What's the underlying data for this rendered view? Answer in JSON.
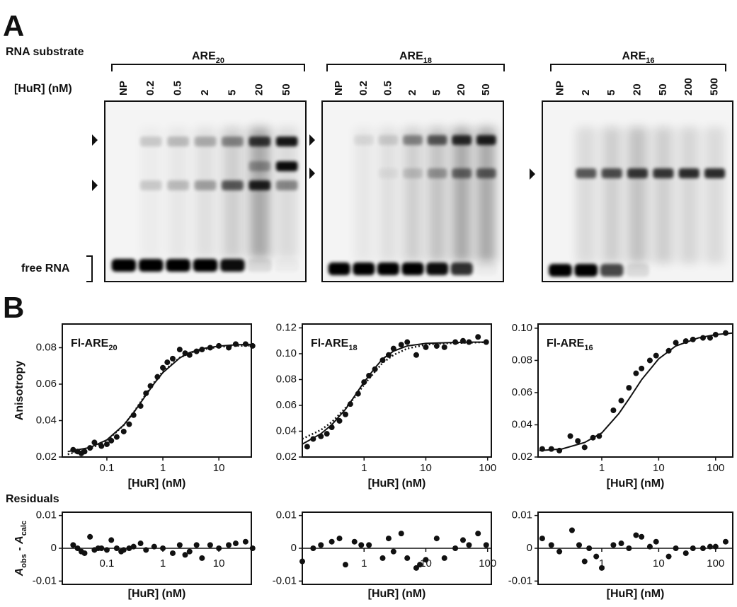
{
  "panel_a": {
    "label": "A",
    "substrate_label": "RNA substrate",
    "conc_label": "[HuR] (nM)",
    "free_label": "free RNA",
    "gels": [
      {
        "name": "ARE",
        "subscript": "20",
        "lanes": [
          "NP",
          "0.2",
          "0.5",
          "2",
          "5",
          "20",
          "50"
        ]
      },
      {
        "name": "ARE",
        "subscript": "18",
        "lanes": [
          "NP",
          "0.2",
          "0.5",
          "2",
          "5",
          "20",
          "50"
        ]
      },
      {
        "name": "ARE",
        "subscript": "16",
        "lanes": [
          "NP",
          "2",
          "5",
          "20",
          "50",
          "200",
          "500"
        ]
      }
    ]
  },
  "panel_b": {
    "label": "B",
    "residuals_label": "Residuals"
  },
  "chart_data": [
    {
      "type": "scatter",
      "title": "Fl-ARE",
      "title_subscript": "20",
      "xlabel": "[HuR] (nM)",
      "ylabel": "Anisotropy",
      "xscale": "log",
      "xlim": [
        0.016,
        38
      ],
      "xticks": [
        0.1,
        1,
        10
      ],
      "ylim": [
        0.02,
        0.093
      ],
      "yticks": [
        0.02,
        0.04,
        0.06,
        0.08
      ],
      "series": [
        {
          "mode": "markers",
          "color": "#111111",
          "x": [
            0.025,
            0.03,
            0.035,
            0.04,
            0.05,
            0.06,
            0.08,
            0.1,
            0.12,
            0.15,
            0.2,
            0.25,
            0.3,
            0.4,
            0.5,
            0.6,
            0.8,
            1,
            1.2,
            1.5,
            2,
            2.5,
            3,
            4,
            5,
            7,
            10,
            15,
            20,
            30,
            40
          ],
          "values": [
            0.024,
            0.023,
            0.022,
            0.023,
            0.025,
            0.028,
            0.026,
            0.027,
            0.029,
            0.031,
            0.034,
            0.038,
            0.043,
            0.048,
            0.055,
            0.059,
            0.064,
            0.069,
            0.072,
            0.074,
            0.079,
            0.077,
            0.076,
            0.078,
            0.079,
            0.08,
            0.081,
            0.08,
            0.082,
            0.082,
            0.081
          ]
        },
        {
          "mode": "line",
          "line_style": "solid",
          "color": "#111111",
          "x": [
            0.02,
            0.05,
            0.1,
            0.2,
            0.3,
            0.5,
            0.7,
            1,
            2,
            3,
            5,
            10,
            20,
            40
          ],
          "values": [
            0.023,
            0.0252,
            0.0294,
            0.0376,
            0.0443,
            0.054,
            0.0604,
            0.0663,
            0.0744,
            0.0773,
            0.0795,
            0.0809,
            0.0816,
            0.0818
          ]
        },
        {
          "mode": "line",
          "line_style": "dotted",
          "color": "#111111",
          "x": [
            0.02,
            0.05,
            0.1,
            0.2,
            0.3,
            0.5,
            0.7,
            1,
            2,
            3,
            5,
            10,
            20,
            40
          ],
          "values": [
            0.0215,
            0.0245,
            0.029,
            0.0375,
            0.0445,
            0.0545,
            0.061,
            0.067,
            0.0745,
            0.077,
            0.079,
            0.0805,
            0.081,
            0.0812
          ]
        }
      ]
    },
    {
      "type": "scatter",
      "title": "Fl-ARE",
      "title_subscript": "18",
      "xlabel": "[HuR] (nM)",
      "xscale": "log",
      "xlim": [
        0.1,
        115
      ],
      "xticks": [
        1,
        10,
        100
      ],
      "ylim": [
        0.02,
        0.123
      ],
      "yticks": [
        0.02,
        0.04,
        0.06,
        0.08,
        {
          "value": 0.1,
          "label": "0.10"
        },
        0.12
      ],
      "series": [
        {
          "mode": "markers",
          "color": "#111111",
          "x": [
            0.12,
            0.15,
            0.2,
            0.25,
            0.3,
            0.4,
            0.5,
            0.6,
            0.8,
            1,
            1.2,
            1.5,
            2,
            2.5,
            3,
            4,
            5,
            7,
            10,
            15,
            20,
            30,
            40,
            50,
            70,
            95
          ],
          "values": [
            0.028,
            0.034,
            0.036,
            0.038,
            0.043,
            0.048,
            0.053,
            0.061,
            0.069,
            0.078,
            0.083,
            0.088,
            0.095,
            0.099,
            0.104,
            0.107,
            0.109,
            0.099,
            0.105,
            0.106,
            0.105,
            0.109,
            0.11,
            0.109,
            0.113,
            0.109
          ]
        },
        {
          "mode": "line",
          "line_style": "solid",
          "color": "#111111",
          "x": [
            0.1,
            0.2,
            0.3,
            0.5,
            0.7,
            1,
            1.5,
            2,
            3,
            5,
            10,
            20,
            50,
            100
          ],
          "values": [
            0.03,
            0.038,
            0.045,
            0.057,
            0.067,
            0.078,
            0.089,
            0.096,
            0.102,
            0.106,
            0.108,
            0.1085,
            0.109,
            0.109
          ]
        },
        {
          "mode": "line",
          "line_style": "dotted",
          "color": "#111111",
          "x": [
            0.1,
            0.2,
            0.3,
            0.5,
            0.7,
            1,
            1.5,
            2,
            3,
            5,
            10,
            20,
            50,
            100
          ],
          "values": [
            0.034,
            0.041,
            0.047,
            0.058,
            0.066,
            0.076,
            0.086,
            0.093,
            0.099,
            0.104,
            0.107,
            0.108,
            0.1085,
            0.109
          ]
        }
      ]
    },
    {
      "type": "scatter",
      "title": "Fl-ARE",
      "title_subscript": "16",
      "xlabel": "[HuR] (nM)",
      "xscale": "log",
      "xlim": [
        0.076,
        200
      ],
      "xticks": [
        1,
        10,
        100
      ],
      "ylim": [
        0.02,
        0.1026
      ],
      "yticks": [
        0.02,
        0.04,
        0.06,
        0.08,
        {
          "value": 0.1,
          "label": "0.10"
        }
      ],
      "series": [
        {
          "mode": "markers",
          "color": "#111111",
          "x": [
            0.09,
            0.13,
            0.18,
            0.28,
            0.38,
            0.5,
            0.7,
            0.9,
            1.6,
            2.2,
            3,
            4,
            5,
            7,
            9,
            15,
            20,
            30,
            40,
            60,
            80,
            100,
            150
          ],
          "values": [
            0.025,
            0.025,
            0.024,
            0.033,
            0.03,
            0.026,
            0.032,
            0.033,
            0.049,
            0.055,
            0.063,
            0.072,
            0.075,
            0.08,
            0.083,
            0.086,
            0.091,
            0.092,
            0.093,
            0.094,
            0.094,
            0.096,
            0.097
          ]
        },
        {
          "mode": "line",
          "line_style": "solid",
          "color": "#111111",
          "x": [
            0.08,
            0.2,
            0.5,
            1,
            2,
            3,
            5,
            10,
            20,
            50,
            100,
            200
          ],
          "values": [
            0.024,
            0.025,
            0.029,
            0.035,
            0.047,
            0.056,
            0.068,
            0.081,
            0.089,
            0.094,
            0.096,
            0.097
          ]
        }
      ]
    },
    {
      "type": "scatter",
      "xlabel": "[HuR] (nM)",
      "xscale": "log",
      "x_axis_at_zero": true,
      "ylabel_parts": [
        {
          "text": "A",
          "sub": "obs"
        },
        {
          "text": " - "
        },
        {
          "text": "A",
          "sub": "calc"
        }
      ],
      "xlim": [
        0.016,
        38
      ],
      "xticks": [
        0.1,
        1,
        10
      ],
      "ylim": [
        -0.011,
        0.011
      ],
      "yticks": [
        -0.01,
        0,
        0.01
      ],
      "series": [
        {
          "mode": "markers",
          "color": "#111111",
          "x": [
            0.025,
            0.03,
            0.035,
            0.04,
            0.05,
            0.06,
            0.07,
            0.08,
            0.1,
            0.12,
            0.15,
            0.18,
            0.2,
            0.25,
            0.3,
            0.4,
            0.5,
            0.7,
            1,
            1.5,
            2,
            2.5,
            3,
            4,
            5,
            7,
            10,
            15,
            20,
            30,
            40
          ],
          "values": [
            0.001,
            0,
            -0.001,
            -0.0015,
            0.0035,
            -0.0005,
            0,
            0,
            -0.0005,
            0.0025,
            0,
            -0.001,
            -0.0005,
            0,
            0.0005,
            0.0015,
            -0.0005,
            0.0005,
            0,
            -0.0015,
            0.001,
            -0.002,
            -0.001,
            0.001,
            -0.003,
            0.001,
            0,
            0.001,
            0.0015,
            0.002,
            0
          ]
        }
      ]
    },
    {
      "type": "scatter",
      "xlabel": "[HuR] (nM)",
      "xscale": "log",
      "x_axis_at_zero": true,
      "xlim": [
        0.1,
        115
      ],
      "xticks": [
        1,
        10,
        100
      ],
      "ylim": [
        -0.011,
        0.011
      ],
      "yticks": [
        -0.01,
        0,
        0.01
      ],
      "series": [
        {
          "mode": "markers",
          "color": "#111111",
          "x": [
            0.1,
            0.15,
            0.2,
            0.3,
            0.4,
            0.5,
            0.7,
            0.9,
            1.2,
            2,
            2.5,
            3,
            4,
            5,
            7,
            8,
            10,
            15,
            20,
            30,
            40,
            50,
            70,
            95
          ],
          "values": [
            -0.004,
            0,
            0.001,
            0.002,
            0.003,
            -0.005,
            0.002,
            0.001,
            0.001,
            -0.003,
            0.003,
            -0.001,
            0.0045,
            -0.003,
            -0.006,
            -0.005,
            -0.0035,
            0.003,
            -0.003,
            0,
            0.0025,
            0.001,
            0.0045,
            0.001
          ]
        }
      ]
    },
    {
      "type": "scatter",
      "xlabel": "[HuR] (nM)",
      "xscale": "log",
      "x_axis_at_zero": true,
      "xlim": [
        0.076,
        200
      ],
      "xticks": [
        1,
        10,
        100
      ],
      "ylim": [
        -0.011,
        0.011
      ],
      "yticks": [
        -0.01,
        0,
        0.01
      ],
      "series": [
        {
          "mode": "markers",
          "color": "#111111",
          "x": [
            0.09,
            0.13,
            0.18,
            0.3,
            0.4,
            0.5,
            0.6,
            0.8,
            1,
            1.6,
            2.2,
            3,
            4,
            5,
            7,
            9,
            15,
            20,
            30,
            40,
            60,
            80,
            100,
            150
          ],
          "values": [
            0.003,
            0.001,
            -0.001,
            0.0055,
            0.001,
            -0.004,
            0,
            -0.0025,
            -0.006,
            0.001,
            0.0015,
            0,
            0.004,
            0.0035,
            0.0005,
            0.002,
            -0.0025,
            0,
            -0.0015,
            0,
            0,
            0.0005,
            0.0005,
            0.002
          ]
        }
      ]
    }
  ]
}
